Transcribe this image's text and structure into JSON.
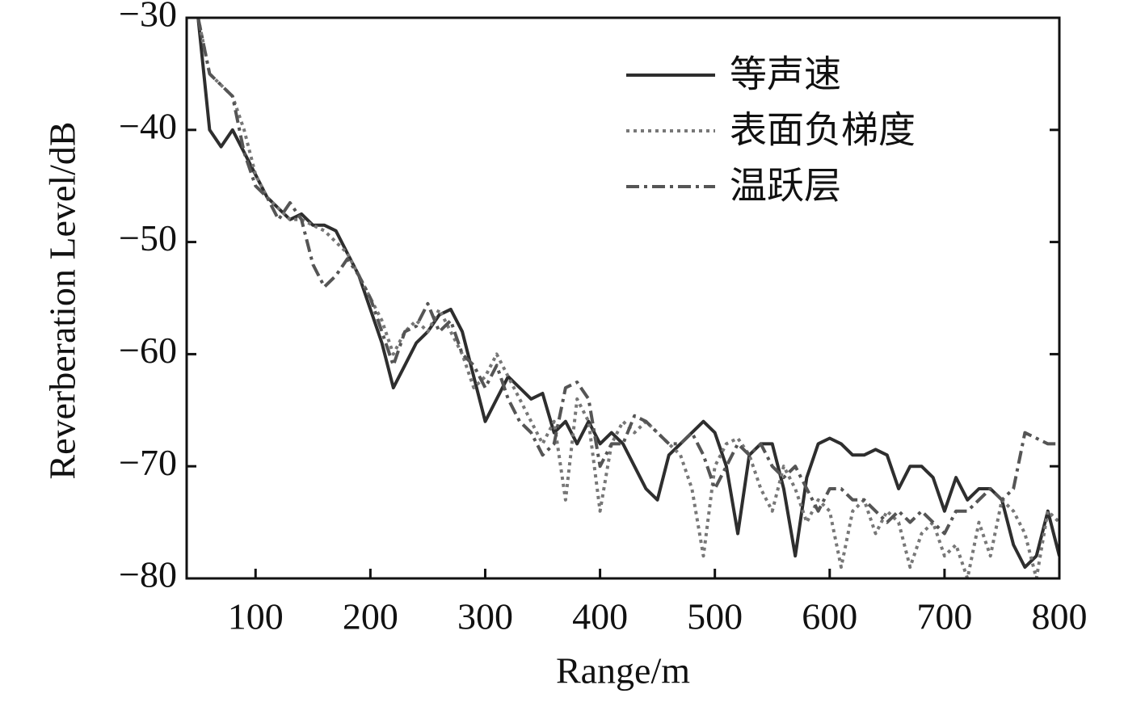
{
  "chart_data": {
    "type": "line",
    "xlabel": "Range/m",
    "ylabel": "Reverberation Level/dB",
    "x": [
      50,
      60,
      70,
      80,
      90,
      100,
      110,
      120,
      130,
      140,
      150,
      160,
      170,
      180,
      190,
      200,
      210,
      220,
      230,
      240,
      250,
      260,
      270,
      280,
      290,
      300,
      310,
      320,
      330,
      340,
      350,
      360,
      370,
      380,
      390,
      400,
      410,
      420,
      430,
      440,
      450,
      460,
      470,
      480,
      490,
      500,
      510,
      520,
      530,
      540,
      550,
      560,
      570,
      580,
      590,
      600,
      610,
      620,
      630,
      640,
      650,
      660,
      670,
      680,
      690,
      700,
      710,
      720,
      730,
      740,
      750,
      760,
      770,
      780,
      790,
      800
    ],
    "series": [
      {
        "name": "等声速",
        "color": "#2e2e2e",
        "style": "solid",
        "values": [
          -30,
          -40,
          -41.5,
          -40,
          -42,
          -44,
          -46,
          -47,
          -48,
          -47.5,
          -48.5,
          -48.5,
          -49,
          -51,
          -53,
          -56,
          -59,
          -63,
          -61,
          -59,
          -58,
          -56.5,
          -56,
          -58,
          -62,
          -66,
          -64,
          -62,
          -63,
          -64,
          -63.5,
          -67,
          -66,
          -68,
          -66,
          -68,
          -67,
          -68,
          -70,
          -72,
          -73,
          -69,
          -68,
          -67,
          -66,
          -67,
          -70,
          -76,
          -69,
          -68,
          -68,
          -72,
          -78,
          -71,
          -68,
          -67.5,
          -68,
          -69,
          -69,
          -68.5,
          -69,
          -72,
          -70,
          -70,
          -71,
          -74,
          -71,
          -73,
          -72,
          -72,
          -73,
          -77,
          -79,
          -78,
          -74,
          -78
        ]
      },
      {
        "name": "表面负梯度",
        "color": "#777777",
        "style": "dotted",
        "values": [
          -30,
          -35,
          -36,
          -37,
          -40,
          -44,
          -46,
          -47,
          -48,
          -48,
          -48.5,
          -49,
          -50,
          -51,
          -53,
          -55,
          -57,
          -60,
          -58,
          -57,
          -58,
          -56,
          -58,
          -60,
          -63,
          -62,
          -60,
          -62,
          -64,
          -66,
          -68,
          -66,
          -73,
          -64,
          -66,
          -74,
          -68,
          -66,
          -67,
          -66,
          -67,
          -68,
          -69,
          -72,
          -78,
          -70,
          -68,
          -67.5,
          -69,
          -72,
          -74,
          -70,
          -72,
          -75,
          -73,
          -74,
          -79,
          -74,
          -73,
          -76,
          -74,
          -75,
          -79,
          -76,
          -75,
          -78,
          -77,
          -80,
          -75,
          -78,
          -73,
          -74,
          -76,
          -80,
          -74,
          -75
        ]
      },
      {
        "name": "温跃层",
        "color": "#555555",
        "style": "dashdot",
        "values": [
          -30,
          -35,
          -36,
          -37,
          -42,
          -45,
          -46,
          -48,
          -46.5,
          -48,
          -52,
          -54,
          -53,
          -51.5,
          -53,
          -55,
          -58,
          -61,
          -58,
          -57.5,
          -55.5,
          -58,
          -57,
          -60,
          -61,
          -63,
          -61,
          -64,
          -66,
          -67,
          -69,
          -68,
          -63,
          -62.5,
          -64,
          -70,
          -68,
          -68,
          -65.5,
          -66,
          -67,
          -68,
          -68,
          -67,
          -69,
          -72,
          -70,
          -68,
          -69,
          -68,
          -70,
          -71,
          -70,
          -72,
          -74,
          -72,
          -72,
          -73,
          -73,
          -74,
          -75,
          -74,
          -75,
          -74,
          -75,
          -76,
          -74,
          -74,
          -73,
          -72,
          -73,
          -72,
          -67,
          -67.5,
          -68,
          -68
        ]
      }
    ],
    "xlim": [
      40,
      800
    ],
    "xticks": [
      100,
      200,
      300,
      400,
      500,
      600,
      700,
      800
    ],
    "ylim": [
      -80,
      -30
    ],
    "yticks": [
      {
        "value": -80,
        "label": "−80"
      },
      {
        "value": -70,
        "label": "−70"
      },
      {
        "value": -60,
        "label": "−60"
      },
      {
        "value": -50,
        "label": "−50"
      },
      {
        "value": -40,
        "label": "−40"
      },
      {
        "value": -30,
        "label": "−30"
      }
    ],
    "legend": "upper right",
    "grid": false
  }
}
